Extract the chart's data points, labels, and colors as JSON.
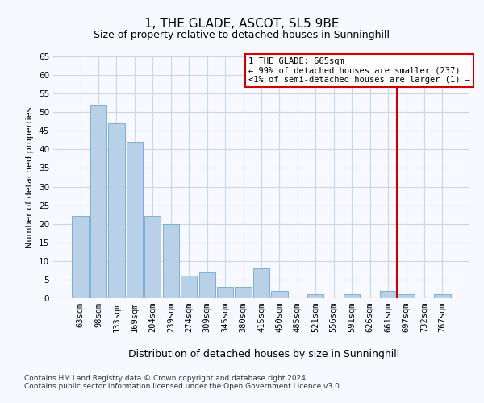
{
  "title": "1, THE GLADE, ASCOT, SL5 9BE",
  "subtitle": "Size of property relative to detached houses in Sunninghill",
  "xlabel": "Distribution of detached houses by size in Sunninghill",
  "ylabel": "Number of detached properties",
  "categories": [
    "63sqm",
    "98sqm",
    "133sqm",
    "169sqm",
    "204sqm",
    "239sqm",
    "274sqm",
    "309sqm",
    "345sqm",
    "380sqm",
    "415sqm",
    "450sqm",
    "485sqm",
    "521sqm",
    "556sqm",
    "591sqm",
    "626sqm",
    "661sqm",
    "697sqm",
    "732sqm",
    "767sqm"
  ],
  "values": [
    22,
    52,
    47,
    42,
    22,
    20,
    6,
    7,
    3,
    3,
    8,
    2,
    0,
    1,
    0,
    1,
    0,
    2,
    1,
    0,
    1
  ],
  "bar_color": "#b8d0e8",
  "bar_edge_color": "#6fa8d0",
  "vline_x": 17.5,
  "vline_color": "#cc0000",
  "annotation_text": "1 THE GLADE: 665sqm\n← 99% of detached houses are smaller (237)\n<1% of semi-detached houses are larger (1) →",
  "annotation_box_color": "#ffffff",
  "annotation_box_edge_color": "#cc0000",
  "ylim": [
    0,
    65
  ],
  "yticks": [
    0,
    5,
    10,
    15,
    20,
    25,
    30,
    35,
    40,
    45,
    50,
    55,
    60,
    65
  ],
  "background_color": "#f8f8ff",
  "grid_color": "#c8d8e8",
  "footer_line1": "Contains HM Land Registry data © Crown copyright and database right 2024.",
  "footer_line2": "Contains public sector information licensed under the Open Government Licence v3.0.",
  "title_fontsize": 11,
  "subtitle_fontsize": 9,
  "xlabel_fontsize": 9,
  "ylabel_fontsize": 8,
  "tick_fontsize": 7.5,
  "annotation_fontsize": 7.5,
  "footer_fontsize": 6.5
}
